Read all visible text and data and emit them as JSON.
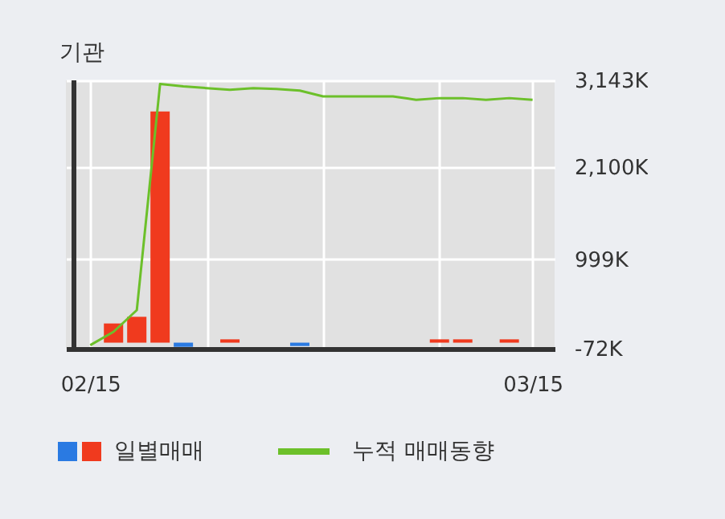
{
  "chart_data": {
    "type": "bar",
    "title": "기관",
    "categories": [
      "02/15",
      null,
      null,
      null,
      null,
      null,
      null,
      null,
      null,
      null,
      null,
      null,
      null,
      null,
      null,
      null,
      null,
      null,
      null,
      "03/15"
    ],
    "series": [
      {
        "name": "일별매매",
        "colors": [
          "#f03a1e",
          "#f03a1e",
          "#f03a1e",
          "#f03a1e",
          "#2a7ae2",
          "#f03a1e",
          "#f03a1e",
          "#f03a1e",
          "#f03a1e",
          "#2a7ae2",
          "#f03a1e",
          "#f03a1e",
          "#f03a1e",
          "#f03a1e",
          "#f03a1e",
          "#f03a1e",
          "#f03a1e",
          "#f03a1e",
          "#f03a1e",
          "#f03a1e"
        ],
        "values": [
          0,
          230,
          310,
          2770,
          -50,
          0,
          40,
          0,
          0,
          -40,
          0,
          0,
          0,
          0,
          0,
          40,
          40,
          0,
          40,
          0
        ]
      },
      {
        "name": "누적 매매동향",
        "type": "line",
        "color": "#6cc02a",
        "values": [
          -30,
          130,
          390,
          3100,
          3070,
          3050,
          3030,
          3050,
          3040,
          3020,
          2950,
          2950,
          2950,
          2950,
          2910,
          2930,
          2930,
          2910,
          2930,
          2910
        ]
      }
    ],
    "ylim": [
      -72,
      3143
    ],
    "yticks": [
      {
        "value": -72,
        "label": "-72K"
      },
      {
        "value": 999,
        "label": "999K"
      },
      {
        "value": 2100,
        "label": "2,100K"
      },
      {
        "value": 3143,
        "label": "3,143K"
      }
    ],
    "grid": true,
    "legend": "bottom"
  }
}
